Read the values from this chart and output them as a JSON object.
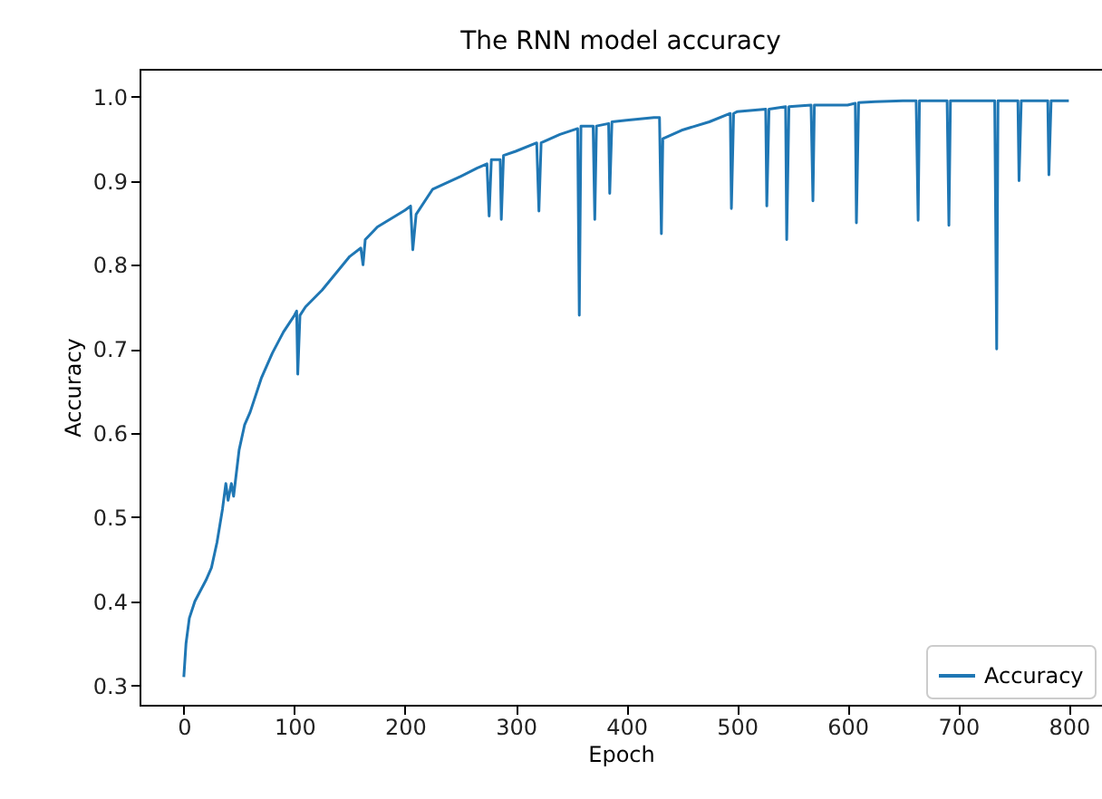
{
  "chart_data": {
    "type": "line",
    "title": "The RNN model accuracy",
    "xlabel": "Epoch",
    "ylabel": "Accuracy",
    "xlim": [
      -40,
      830
    ],
    "ylim": [
      0.277,
      1.033
    ],
    "xticks": [
      0,
      100,
      200,
      300,
      400,
      500,
      600,
      700,
      800
    ],
    "yticks": [
      0.3,
      0.4,
      0.5,
      0.6,
      0.7,
      0.8,
      0.9,
      {
        "value": 1,
        "label": "1.0"
      }
    ],
    "grid": false,
    "legend": "bottom right",
    "series": [
      {
        "name": "Accuracy",
        "color": "#1f77b4",
        "x": [
          0,
          2,
          5,
          10,
          20,
          25,
          30,
          35,
          38,
          40,
          43,
          45,
          50,
          55,
          60,
          70,
          80,
          90,
          100,
          102,
          103,
          105,
          110,
          125,
          150,
          160,
          162,
          164,
          175,
          200,
          205,
          207,
          210,
          225,
          250,
          265,
          274,
          276,
          278,
          286,
          287,
          289,
          300,
          319,
          321,
          323,
          340,
          356,
          357.5,
          359,
          370,
          371.5,
          373,
          384,
          385,
          387,
          400,
          425,
          430,
          431.7,
          433,
          450,
          475,
          494,
          495,
          497,
          500,
          526,
          527,
          529,
          544,
          545,
          547,
          567,
          568.7,
          570,
          600,
          607,
          608,
          610,
          625,
          650,
          662,
          663.8,
          665,
          690,
          691.6,
          693,
          733,
          734.8,
          736,
          754,
          755,
          757,
          781,
          782,
          784,
          800
        ],
        "values": [
          0.31,
          0.35,
          0.38,
          0.4,
          0.425,
          0.44,
          0.47,
          0.51,
          0.54,
          0.52,
          0.54,
          0.525,
          0.58,
          0.61,
          0.625,
          0.665,
          0.695,
          0.72,
          0.74,
          0.745,
          0.67,
          0.74,
          0.75,
          0.77,
          0.81,
          0.82,
          0.8,
          0.83,
          0.845,
          0.865,
          0.87,
          0.818,
          0.86,
          0.89,
          0.905,
          0.915,
          0.92,
          0.858,
          0.925,
          0.925,
          0.854,
          0.93,
          0.935,
          0.945,
          0.864,
          0.945,
          0.955,
          0.962,
          0.74,
          0.965,
          0.965,
          0.854,
          0.965,
          0.968,
          0.885,
          0.97,
          0.972,
          0.975,
          0.975,
          0.837,
          0.95,
          0.96,
          0.97,
          0.98,
          0.867,
          0.98,
          0.982,
          0.985,
          0.87,
          0.985,
          0.988,
          0.83,
          0.988,
          0.99,
          0.876,
          0.99,
          0.99,
          0.992,
          0.85,
          0.993,
          0.994,
          0.995,
          0.995,
          0.853,
          0.995,
          0.995,
          0.847,
          0.995,
          0.995,
          0.7,
          0.995,
          0.995,
          0.9,
          0.995,
          0.995,
          0.907,
          0.995,
          0.995
        ]
      }
    ]
  }
}
